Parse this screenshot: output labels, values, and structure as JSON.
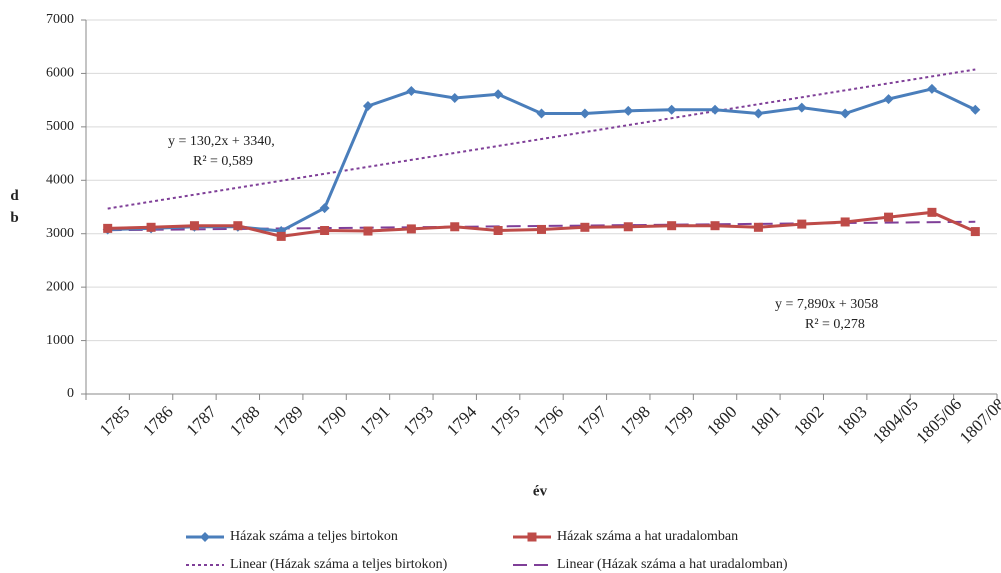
{
  "chart_data": {
    "type": "line",
    "xlabel": "év",
    "ylabel": "db",
    "categories": [
      "1785",
      "1786",
      "1787",
      "1788",
      "1789",
      "1790",
      "1791",
      "1793",
      "1794",
      "1795",
      "1796",
      "1797",
      "1798",
      "1799",
      "1800",
      "1801",
      "1802",
      "1803",
      "1804/05",
      "1805/06",
      "1807/08"
    ],
    "series": [
      {
        "name": "Házak száma a teljes birtokon",
        "color": "#4a7ebb",
        "marker": "diamond",
        "values": [
          3080,
          3100,
          3130,
          3130,
          3050,
          3480,
          5390,
          5670,
          5540,
          5610,
          5250,
          5250,
          5300,
          5320,
          5320,
          5250,
          5360,
          5250,
          5520,
          5710,
          5320
        ]
      },
      {
        "name": "Házak száma a hat uradalomban",
        "color": "#be4b48",
        "marker": "square",
        "values": [
          3100,
          3120,
          3150,
          3150,
          2950,
          3060,
          3050,
          3090,
          3130,
          3060,
          3080,
          3120,
          3130,
          3150,
          3150,
          3120,
          3180,
          3220,
          3310,
          3400,
          3040
        ]
      }
    ],
    "trendlines": [
      {
        "name": "Linear (Házak száma a teljes birtokon)",
        "color": "#7f3f98",
        "dash": "3,3",
        "slope": 130.2,
        "intercept": 3340,
        "equation": "y = 130,2x + 3340,",
        "r2": "R² = 0,589"
      },
      {
        "name": "Linear (Házak száma a hat uradalomban)",
        "color": "#7f3f98",
        "dash": "14,7",
        "slope": 7.89,
        "intercept": 3058,
        "equation": "y = 7,890x + 3058",
        "r2": "R² = 0,278"
      }
    ],
    "ylim": [
      0,
      7000
    ],
    "yticks": [
      0,
      1000,
      2000,
      3000,
      4000,
      5000,
      6000,
      7000
    ],
    "grid": true
  }
}
